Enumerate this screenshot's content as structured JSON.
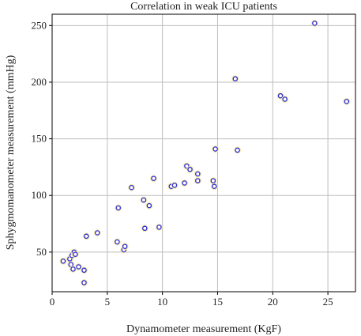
{
  "chart_data": {
    "type": "scatter",
    "title": "Correlation in weak ICU patients",
    "xlabel": "Dynamometer measurement (KgF)",
    "ylabel": "Sphygmomanometer measurement (mmHg)",
    "xlim": [
      0,
      27.5
    ],
    "ylim": [
      15,
      260
    ],
    "xticks": [
      0,
      5,
      10,
      15,
      20,
      25
    ],
    "yticks": [
      50,
      100,
      150,
      200,
      250
    ],
    "grid": true,
    "series": [
      {
        "marker": "open-circle",
        "color": "#2a2ad6",
        "points": [
          [
            1.0,
            42
          ],
          [
            1.6,
            44
          ],
          [
            1.7,
            39
          ],
          [
            1.8,
            47
          ],
          [
            2.0,
            50
          ],
          [
            2.1,
            48
          ],
          [
            1.9,
            35
          ],
          [
            2.4,
            37
          ],
          [
            2.9,
            34
          ],
          [
            2.9,
            23
          ],
          [
            3.1,
            64
          ],
          [
            4.1,
            67
          ],
          [
            5.9,
            59
          ],
          [
            6.0,
            89
          ],
          [
            6.5,
            52
          ],
          [
            6.6,
            55
          ],
          [
            7.2,
            107
          ],
          [
            8.3,
            96
          ],
          [
            8.4,
            71
          ],
          [
            8.8,
            91
          ],
          [
            9.2,
            115
          ],
          [
            9.7,
            72
          ],
          [
            10.8,
            108
          ],
          [
            11.1,
            109
          ],
          [
            12.0,
            111
          ],
          [
            12.2,
            126
          ],
          [
            12.5,
            123
          ],
          [
            13.2,
            119
          ],
          [
            13.2,
            113
          ],
          [
            14.6,
            113
          ],
          [
            14.7,
            108
          ],
          [
            14.8,
            141
          ],
          [
            16.6,
            203
          ],
          [
            16.8,
            140
          ],
          [
            20.7,
            188
          ],
          [
            21.1,
            185
          ],
          [
            23.8,
            252
          ],
          [
            26.7,
            183
          ]
        ]
      }
    ]
  }
}
